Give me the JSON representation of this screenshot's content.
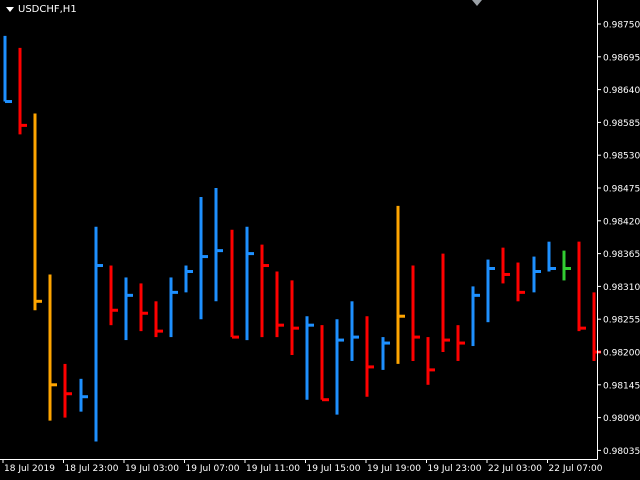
{
  "header": {
    "symbol": "USDCHF,H1"
  },
  "colors": {
    "background": "#000000",
    "axis": "#ffffff",
    "bull": "#1e90ff",
    "bear": "#ff0000",
    "orange": "#ffa500",
    "green": "#32cd32"
  },
  "chart_data": {
    "type": "bar",
    "y_ticks": [
      "0.98750",
      "0.98695",
      "0.98640",
      "0.98585",
      "0.98530",
      "0.98475",
      "0.98420",
      "0.98365",
      "0.98310",
      "0.98255",
      "0.98200",
      "0.98145",
      "0.98090",
      "0.98035"
    ],
    "x_ticks": [
      "18 Jul 2019",
      "18 Jul 23:00",
      "19 Jul 03:00",
      "19 Jul 07:00",
      "19 Jul 11:00",
      "19 Jul 15:00",
      "19 Jul 19:00",
      "19 Jul 23:00",
      "22 Jul 03:00",
      "22 Jul 07:00"
    ],
    "bars": [
      {
        "h": 0.9873,
        "l": 0.9862,
        "o": 0.98725,
        "c": 0.9862,
        "color": "blue"
      },
      {
        "h": 0.9871,
        "l": 0.98565,
        "o": 0.9871,
        "c": 0.9858,
        "color": "red"
      },
      {
        "h": 0.986,
        "l": 0.9827,
        "o": 0.9827,
        "c": 0.98285,
        "color": "orange"
      },
      {
        "h": 0.9833,
        "l": 0.98085,
        "o": 0.9829,
        "c": 0.98145,
        "color": "orange"
      },
      {
        "h": 0.9818,
        "l": 0.9809,
        "o": 0.9815,
        "c": 0.9813,
        "color": "red"
      },
      {
        "h": 0.98155,
        "l": 0.981,
        "o": 0.98125,
        "c": 0.98125,
        "color": "blue"
      },
      {
        "h": 0.9841,
        "l": 0.9805,
        "o": 0.9805,
        "c": 0.98345,
        "color": "blue"
      },
      {
        "h": 0.98345,
        "l": 0.98245,
        "o": 0.98345,
        "c": 0.9827,
        "color": "red"
      },
      {
        "h": 0.98325,
        "l": 0.9822,
        "o": 0.9827,
        "c": 0.98295,
        "color": "blue"
      },
      {
        "h": 0.98315,
        "l": 0.98235,
        "o": 0.98265,
        "c": 0.98265,
        "color": "red"
      },
      {
        "h": 0.98285,
        "l": 0.98225,
        "o": 0.98235,
        "c": 0.98235,
        "color": "red"
      },
      {
        "h": 0.98325,
        "l": 0.98225,
        "o": 0.98235,
        "c": 0.983,
        "color": "blue"
      },
      {
        "h": 0.98345,
        "l": 0.983,
        "o": 0.9831,
        "c": 0.98335,
        "color": "blue"
      },
      {
        "h": 0.9846,
        "l": 0.98255,
        "o": 0.983,
        "c": 0.9836,
        "color": "blue"
      },
      {
        "h": 0.98475,
        "l": 0.98285,
        "o": 0.983,
        "c": 0.9837,
        "color": "blue"
      },
      {
        "h": 0.98405,
        "l": 0.98225,
        "o": 0.98405,
        "c": 0.98225,
        "color": "red"
      },
      {
        "h": 0.9841,
        "l": 0.9822,
        "o": 0.9824,
        "c": 0.98365,
        "color": "blue"
      },
      {
        "h": 0.9838,
        "l": 0.98225,
        "o": 0.98345,
        "c": 0.98345,
        "color": "red"
      },
      {
        "h": 0.98335,
        "l": 0.98225,
        "o": 0.98325,
        "c": 0.98245,
        "color": "red"
      },
      {
        "h": 0.9832,
        "l": 0.98195,
        "o": 0.9824,
        "c": 0.9824,
        "color": "red"
      },
      {
        "h": 0.9826,
        "l": 0.9812,
        "o": 0.98245,
        "c": 0.98245,
        "color": "blue"
      },
      {
        "h": 0.98245,
        "l": 0.9812,
        "o": 0.98235,
        "c": 0.9812,
        "color": "red"
      },
      {
        "h": 0.98255,
        "l": 0.98095,
        "o": 0.98125,
        "c": 0.9822,
        "color": "blue"
      },
      {
        "h": 0.98285,
        "l": 0.98185,
        "o": 0.982,
        "c": 0.98225,
        "color": "blue"
      },
      {
        "h": 0.9826,
        "l": 0.98125,
        "o": 0.9826,
        "c": 0.98175,
        "color": "red"
      },
      {
        "h": 0.98225,
        "l": 0.9817,
        "o": 0.98185,
        "c": 0.98215,
        "color": "blue"
      },
      {
        "h": 0.98445,
        "l": 0.9818,
        "o": 0.9818,
        "c": 0.9826,
        "color": "orange"
      },
      {
        "h": 0.98345,
        "l": 0.98185,
        "o": 0.9826,
        "c": 0.98225,
        "color": "red"
      },
      {
        "h": 0.98225,
        "l": 0.98145,
        "o": 0.9822,
        "c": 0.9817,
        "color": "red"
      },
      {
        "h": 0.98365,
        "l": 0.982,
        "o": 0.98215,
        "c": 0.9822,
        "color": "red"
      },
      {
        "h": 0.98245,
        "l": 0.98185,
        "o": 0.98215,
        "c": 0.98215,
        "color": "red"
      },
      {
        "h": 0.9831,
        "l": 0.9821,
        "o": 0.98225,
        "c": 0.98295,
        "color": "blue"
      },
      {
        "h": 0.98355,
        "l": 0.9825,
        "o": 0.98265,
        "c": 0.9834,
        "color": "blue"
      },
      {
        "h": 0.98375,
        "l": 0.98315,
        "o": 0.9833,
        "c": 0.9833,
        "color": "red"
      },
      {
        "h": 0.9835,
        "l": 0.98285,
        "o": 0.9833,
        "c": 0.983,
        "color": "red"
      },
      {
        "h": 0.9836,
        "l": 0.983,
        "o": 0.9833,
        "c": 0.98335,
        "color": "blue"
      },
      {
        "h": 0.98385,
        "l": 0.98335,
        "o": 0.9834,
        "c": 0.9834,
        "color": "blue"
      },
      {
        "h": 0.9837,
        "l": 0.9832,
        "o": 0.9834,
        "c": 0.9834,
        "color": "green"
      },
      {
        "h": 0.98385,
        "l": 0.98235,
        "o": 0.9835,
        "c": 0.9824,
        "color": "red"
      },
      {
        "h": 0.983,
        "l": 0.98185,
        "o": 0.983,
        "c": 0.982,
        "color": "red"
      }
    ]
  }
}
